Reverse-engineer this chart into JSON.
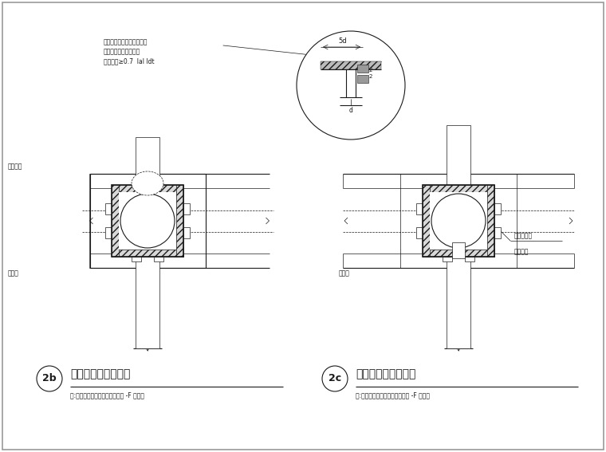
{
  "bg_color": "#ffffff",
  "line_color": "#1a1a1a",
  "title_2b": "梁与边柱连接示意图",
  "label_2b": "2b",
  "note_2b": "注:两个方向梁钢筋通过参照本图 -F 剖面。",
  "title_2c": "边梁与柱连接示意图",
  "label_2c": "2c",
  "note_2c": "注:两个方向梁钢筋通过参照本图 -F 剖面。",
  "ann1": "当梁钢筋锚固长度不够时，",
  "ann2": "末端与钢板穿孔角焊缝",
  "ann3": "锚固长度≥0.7  laI ldt",
  "detail_label": "5d",
  "label_zhicheng": "直撑侧柱",
  "label_chufuban_L": "穿腹板",
  "label_chufuban_R": "穿腹板",
  "label_chukongjg": "穿孔补强板",
  "label_tiaowang": "（条网）"
}
